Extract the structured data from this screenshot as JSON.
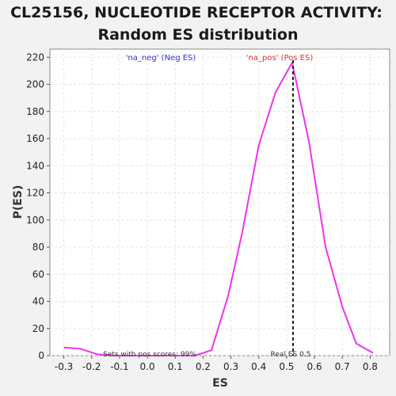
{
  "chart_data": {
    "type": "line",
    "title_line1": "CL25156, NUCLEOTIDE RECEPTOR ACTIVITY:",
    "title_line2": "Random ES distribution",
    "xlabel": "ES",
    "ylabel": "P(ES)",
    "xlim": [
      -0.35,
      0.87
    ],
    "ylim": [
      0,
      226
    ],
    "xticks": [
      -0.3,
      -0.2,
      -0.1,
      0.0,
      0.1,
      0.2,
      0.3,
      0.4,
      0.5,
      0.6,
      0.7,
      0.8
    ],
    "xtick_labels": [
      "-0.3",
      "-0.2",
      "-0.1",
      "0.0",
      "0.1",
      "0.2",
      "0.3",
      "0.4",
      "0.5",
      "0.6",
      "0.7",
      "0.8"
    ],
    "yticks": [
      0,
      20,
      40,
      60,
      80,
      100,
      120,
      140,
      160,
      180,
      200,
      220
    ],
    "ytick_labels": [
      "0",
      "20",
      "40",
      "60",
      "80",
      "100",
      "120",
      "140",
      "160",
      "180",
      "200",
      "220"
    ],
    "grid": true,
    "series": [
      {
        "color": "#ee33ee",
        "x": [
          -0.3,
          -0.24,
          -0.18,
          -0.12,
          -0.06,
          0.0,
          0.06,
          0.11,
          0.17,
          0.23,
          0.29,
          0.34,
          0.4,
          0.46,
          0.52,
          0.58,
          0.64,
          0.7,
          0.75,
          0.81
        ],
        "y": [
          6,
          5,
          1,
          0,
          0,
          0,
          0,
          0,
          0,
          4,
          44,
          90,
          155,
          194,
          216,
          158,
          80,
          36,
          9,
          2
        ]
      }
    ],
    "real_es": {
      "value": 0.523,
      "label": "Real ES 0.5"
    },
    "legend": [
      {
        "text": "'na_neg' (Neg ES)",
        "color": "#3333cc"
      },
      {
        "text": "'na_pos' (Pos ES)",
        "color": "#dd3333"
      }
    ],
    "annotation": "Sets with pos scores: 99%"
  }
}
